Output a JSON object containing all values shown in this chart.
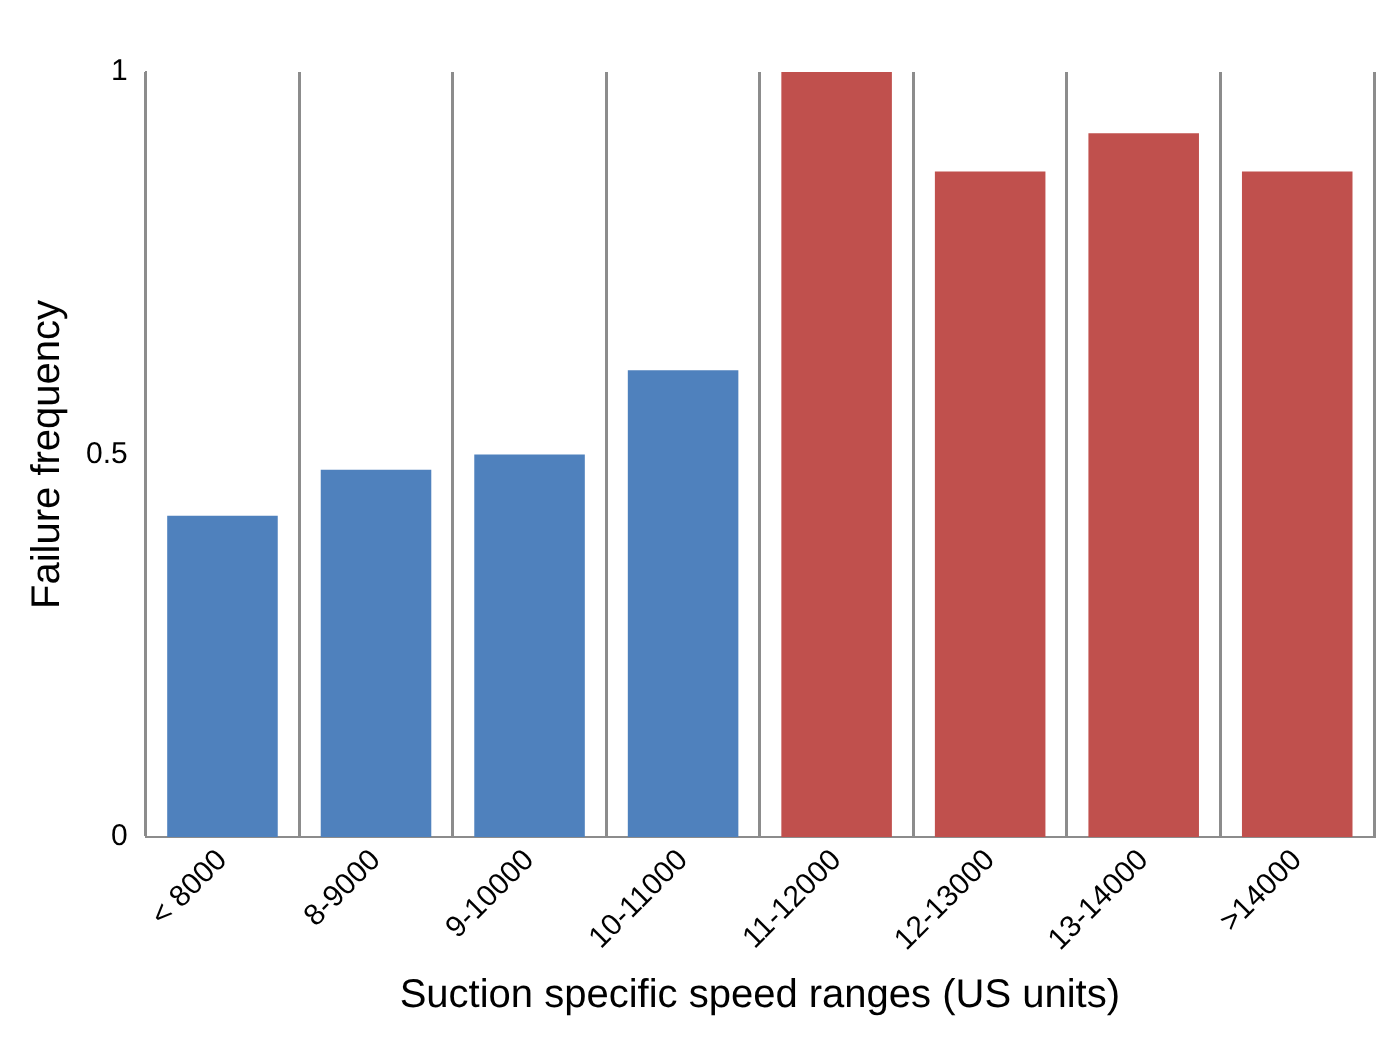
{
  "chart_data": {
    "type": "bar",
    "xlabel": "Suction specific speed ranges (US units)",
    "ylabel": "Failure frequency",
    "categories": [
      "< 8000",
      "8-9000",
      "9-10000",
      "10-11000",
      "11-12000",
      "12-13000",
      "13-14000",
      ">14000"
    ],
    "values": [
      0.42,
      0.48,
      0.5,
      0.61,
      1.0,
      0.87,
      0.92,
      0.87
    ],
    "colors": [
      "#4f81bd",
      "#4f81bd",
      "#4f81bd",
      "#4f81bd",
      "#c0504d",
      "#c0504d",
      "#c0504d",
      "#c0504d"
    ],
    "ylim": [
      0,
      1
    ],
    "yticks": [
      0,
      0.5,
      1
    ],
    "grid": "x",
    "legend": false
  }
}
